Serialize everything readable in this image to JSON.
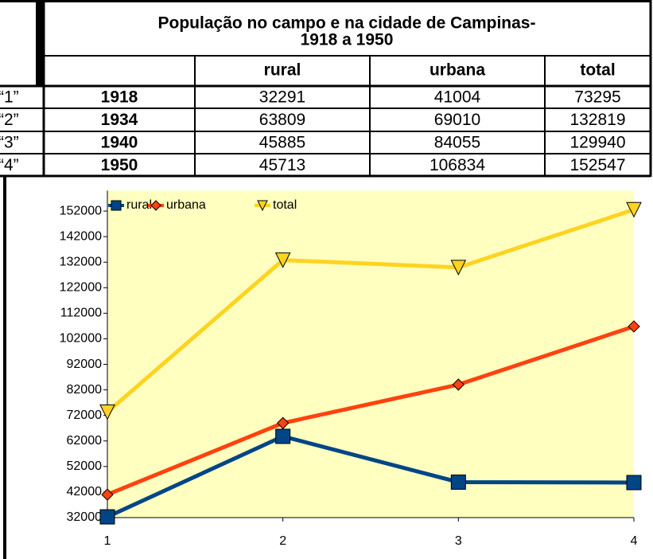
{
  "table": {
    "title_lines": [
      "População no campo e na cidade de Campinas-",
      "1918 a 1950"
    ],
    "header": [
      "rural",
      "urbana",
      "total"
    ],
    "rows": [
      {
        "label": "“1”",
        "year": 1918,
        "values": [
          32291,
          41004,
          73295
        ]
      },
      {
        "label": "“2”",
        "year": 1934,
        "values": [
          63809,
          69010,
          132819
        ]
      },
      {
        "label": "“3”",
        "year": 1940,
        "values": [
          45885,
          84055,
          129940
        ]
      },
      {
        "label": "“4”",
        "year": 1950,
        "values": [
          45713,
          106834,
          152547
        ]
      }
    ]
  },
  "chart_data": {
    "type": "line",
    "x": [
      1,
      2,
      3,
      4
    ],
    "xlim": [
      1,
      4
    ],
    "xticks": [
      1,
      2,
      3,
      4
    ],
    "ylim": [
      32000,
      160000
    ],
    "yticks": [
      32000,
      42000,
      52000,
      62000,
      72000,
      82000,
      92000,
      102000,
      112000,
      122000,
      132000,
      142000,
      152000
    ],
    "legend": "top-left",
    "series": [
      {
        "name": "rural",
        "color": "#004586",
        "marker": "square",
        "values": [
          32291,
          63809,
          45885,
          45713
        ]
      },
      {
        "name": "urbana",
        "color": "#ff420e",
        "marker": "diamond",
        "values": [
          41004,
          69010,
          84055,
          106834
        ]
      },
      {
        "name": "total",
        "color": "#ffd320",
        "marker": "triangle-down",
        "values": [
          73295,
          132819,
          129940,
          152547
        ]
      }
    ]
  }
}
